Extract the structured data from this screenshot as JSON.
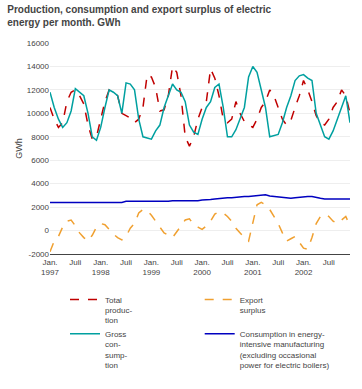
{
  "chart_data": {
    "type": "line",
    "title": "Production, consumption and export surplus of electric\nenergy per month. GWh",
    "y_label": "GWh",
    "categories": [
      "Jan.\n1997",
      null,
      null,
      null,
      null,
      null,
      "Juli",
      null,
      null,
      null,
      null,
      null,
      "Jan.\n1998",
      null,
      null,
      null,
      null,
      null,
      "Juli",
      null,
      null,
      null,
      null,
      null,
      "Jan.\n1999",
      null,
      null,
      null,
      null,
      null,
      "Juli",
      null,
      null,
      null,
      null,
      null,
      "Jan.\n2000",
      null,
      null,
      null,
      null,
      null,
      "Juli",
      null,
      null,
      null,
      null,
      null,
      "Jan.\n2001",
      null,
      null,
      null,
      null,
      null,
      "Juli",
      null,
      null,
      null,
      null,
      null,
      "Jan.\n2002",
      null,
      null,
      null,
      null,
      null,
      "Juli",
      null,
      null,
      null,
      null,
      null
    ],
    "series": [
      {
        "name": "Total\nproduc-\ntion",
        "color": "#c00000",
        "line_style": "dashed",
        "values": [
          10500,
          9500,
          8800,
          9200,
          11000,
          11800,
          12000,
          11500,
          10800,
          9000,
          7800,
          8000,
          9500,
          11000,
          12000,
          11800,
          11500,
          10000,
          9800,
          9600,
          9200,
          9500,
          10500,
          13300,
          13100,
          12200,
          10200,
          10300,
          11500,
          14000,
          13500,
          11500,
          8000,
          7200,
          8000,
          9500,
          10500,
          11000,
          13800,
          13000,
          11500,
          9500,
          9200,
          9500,
          11000,
          10000,
          9300,
          9000,
          8800,
          9500,
          10500,
          11000,
          12000,
          11500,
          10500,
          9500,
          9000,
          9400,
          10500,
          11500,
          12800,
          12000,
          11000,
          9800,
          9200,
          9000,
          9500,
          10500,
          11000,
          12000,
          11500,
          10000
        ]
      },
      {
        "name": "Export\nsurplus",
        "color": "#f0a030",
        "line_style": "dashed",
        "values": [
          -1800,
          -900,
          -500,
          300,
          800,
          900,
          400,
          -200,
          -600,
          -900,
          -400,
          300,
          600,
          500,
          100,
          -300,
          -600,
          -800,
          -500,
          200,
          600,
          1500,
          1800,
          1700,
          1300,
          800,
          300,
          -200,
          -400,
          -600,
          -100,
          400,
          900,
          1000,
          500,
          300,
          100,
          400,
          800,
          1400,
          1600,
          1500,
          1200,
          800,
          200,
          -200,
          -600,
          -900,
          600,
          2200,
          2400,
          2200,
          1800,
          1200,
          600,
          -200,
          -900,
          -700,
          -500,
          -1000,
          -1500,
          -1600,
          -600,
          600,
          1200,
          1400,
          1200,
          800,
          600,
          900,
          1200,
          400
        ]
      },
      {
        "name": "Gross\ncon-\nsump-\ntion",
        "color": "#00a0a0",
        "line_style": "solid",
        "values": [
          11800,
          10500,
          9500,
          8800,
          9200,
          10200,
          12100,
          11800,
          11500,
          10000,
          8000,
          7700,
          8800,
          10500,
          12000,
          11800,
          11500,
          10000,
          12600,
          12500,
          12000,
          9500,
          8000,
          7900,
          7800,
          8500,
          9000,
          10500,
          11500,
          12500,
          12000,
          11800,
          11000,
          9000,
          8400,
          8200,
          9500,
          10500,
          11000,
          12200,
          12500,
          10500,
          8000,
          8000,
          8600,
          9500,
          10500,
          13100,
          14000,
          13500,
          12000,
          10500,
          8000,
          8100,
          8200,
          9200,
          10500,
          11500,
          12800,
          13200,
          13300,
          13000,
          12800,
          10000,
          9000,
          8000,
          7800,
          8500,
          9500,
          10500,
          11500,
          9200
        ]
      },
      {
        "name": "Consumption in energy-\nintensive manufacturing\n(excluding occasional\npower for electric boilers)",
        "color": "#0000c0",
        "line_style": "solid",
        "values": [
          2400,
          2400,
          2350,
          2350,
          2350,
          2350,
          2400,
          2400,
          2400,
          2400,
          2400,
          2400,
          2400,
          2400,
          2400,
          2400,
          2400,
          2400,
          2500,
          2500,
          2500,
          2500,
          2500,
          2450,
          2450,
          2450,
          2500,
          2500,
          2500,
          2550,
          2550,
          2550,
          2500,
          2500,
          2500,
          2550,
          2600,
          2600,
          2650,
          2700,
          2750,
          2750,
          2800,
          2800,
          2850,
          2850,
          2900,
          2900,
          2950,
          3000,
          3050,
          3050,
          2950,
          2900,
          2850,
          2800,
          2750,
          2750,
          2800,
          2850,
          2900,
          2900,
          2900,
          2800,
          2750,
          2700,
          2700,
          2700,
          2700,
          2700,
          2700,
          2700
        ]
      }
    ],
    "ylim": [
      -2000,
      16000
    ],
    "yticks": [
      -2000,
      0,
      2000,
      4000,
      6000,
      8000,
      10000,
      12000,
      14000,
      16000
    ],
    "grid": true,
    "legend": "bottom"
  }
}
